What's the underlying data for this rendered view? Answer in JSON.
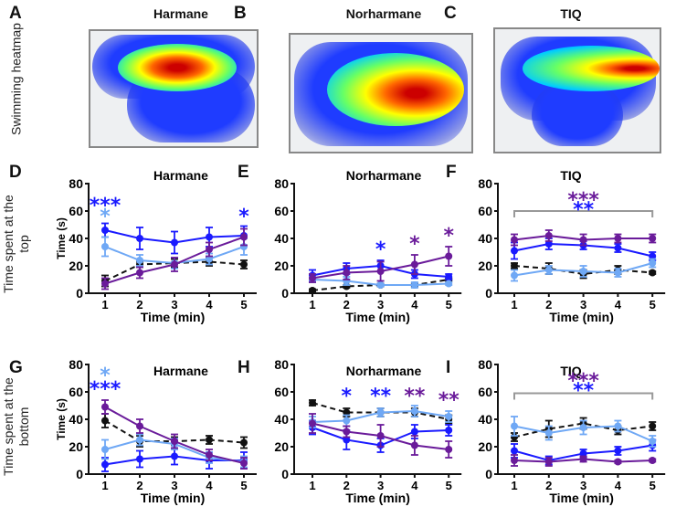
{
  "panel_letters": [
    "A",
    "B",
    "C",
    "D",
    "E",
    "F",
    "G",
    "H",
    "I"
  ],
  "row_labels": {
    "heatmap": "Swimming heatmap",
    "top": "Time spent at the top",
    "bottom": "Time spent at the bottom"
  },
  "compounds": [
    "Harmane",
    "Norharmane",
    "TIQ"
  ],
  "colors": {
    "control": "#111111",
    "blue": "#1a1aff",
    "lightblue": "#6fa8f5",
    "purple": "#6a1b9a"
  },
  "chart_data": [
    {
      "panel": "D",
      "type": "line",
      "title": "Harmane",
      "xlabel": "Time (min)",
      "ylabel": "Time (s)",
      "x": [
        1,
        2,
        3,
        4,
        5
      ],
      "ylim": [
        0,
        80
      ],
      "yticks": [
        0,
        20,
        40,
        60,
        80
      ],
      "series": [
        {
          "color": "control",
          "dashed": true,
          "values": [
            9,
            21,
            22,
            23,
            21
          ],
          "err": [
            4,
            2,
            3,
            3,
            3
          ]
        },
        {
          "color": "blue",
          "values": [
            46,
            40,
            37,
            41,
            42
          ],
          "err": [
            5,
            8,
            8,
            7,
            7
          ]
        },
        {
          "color": "lightblue",
          "values": [
            34,
            24,
            22,
            25,
            34
          ],
          "err": [
            7,
            4,
            4,
            4,
            6
          ]
        },
        {
          "color": "purple",
          "values": [
            7,
            15,
            21,
            32,
            41
          ],
          "err": [
            4,
            4,
            5,
            5,
            6
          ]
        }
      ],
      "annotations": [
        {
          "x": 1,
          "y": 66,
          "text": "***",
          "color": "blue"
        },
        {
          "x": 1,
          "y": 58,
          "text": "*",
          "color": "lightblue"
        },
        {
          "x": 5,
          "y": 58,
          "text": "*",
          "color": "blue"
        }
      ]
    },
    {
      "panel": "E",
      "type": "line",
      "title": "Norharmane",
      "xlabel": "Time (min)",
      "ylabel": "",
      "x": [
        1,
        2,
        3,
        4,
        5
      ],
      "ylim": [
        0,
        80
      ],
      "yticks": [
        0,
        20,
        40,
        60,
        80
      ],
      "series": [
        {
          "color": "control",
          "dashed": true,
          "values": [
            2,
            5,
            6,
            6,
            10
          ],
          "err": [
            1,
            1,
            1,
            1,
            1
          ]
        },
        {
          "color": "blue",
          "values": [
            13,
            18,
            20,
            14,
            12
          ],
          "err": [
            4,
            4,
            4,
            3,
            2
          ]
        },
        {
          "color": "lightblue",
          "values": [
            10,
            9,
            6,
            6,
            7
          ],
          "err": [
            2,
            3,
            1,
            2,
            1
          ]
        },
        {
          "color": "purple",
          "values": [
            11,
            15,
            16,
            21,
            27
          ],
          "err": [
            3,
            5,
            7,
            7,
            7
          ]
        }
      ],
      "annotations": [
        {
          "x": 3,
          "y": 34,
          "text": "*",
          "color": "blue"
        },
        {
          "x": 4,
          "y": 38,
          "text": "*",
          "color": "purple"
        },
        {
          "x": 5,
          "y": 44,
          "text": "*",
          "color": "purple"
        }
      ]
    },
    {
      "panel": "F",
      "type": "line",
      "title": "TIQ",
      "xlabel": "Time (min)",
      "ylabel": "",
      "x": [
        1,
        2,
        3,
        4,
        5
      ],
      "ylim": [
        0,
        80
      ],
      "yticks": [
        0,
        20,
        40,
        60,
        80
      ],
      "series": [
        {
          "color": "control",
          "dashed": true,
          "values": [
            20,
            18,
            14,
            17,
            15
          ],
          "err": [
            2,
            4,
            3,
            3,
            1
          ]
        },
        {
          "color": "blue",
          "values": [
            31,
            36,
            35,
            33,
            27
          ],
          "err": [
            6,
            4,
            3,
            3,
            3
          ]
        },
        {
          "color": "lightblue",
          "values": [
            13,
            17,
            16,
            15,
            22
          ],
          "err": [
            4,
            3,
            4,
            3,
            3
          ]
        },
        {
          "color": "purple",
          "values": [
            39,
            42,
            39,
            40,
            40
          ],
          "err": [
            4,
            4,
            4,
            3,
            3
          ]
        }
      ],
      "bracket": {
        "from": 1,
        "to": 5,
        "y": 60
      },
      "annotations": [
        {
          "x": 3,
          "y": 70,
          "text": "***",
          "color": "purple"
        },
        {
          "x": 3,
          "y": 63,
          "text": "**",
          "color": "blue"
        }
      ]
    },
    {
      "panel": "G",
      "type": "line",
      "title": "Harmane",
      "xlabel": "Time (min)",
      "ylabel": "Time (s)",
      "x": [
        1,
        2,
        3,
        4,
        5
      ],
      "ylim": [
        0,
        80
      ],
      "yticks": [
        0,
        20,
        40,
        60,
        80
      ],
      "series": [
        {
          "color": "control",
          "dashed": true,
          "values": [
            39,
            24,
            24,
            25,
            23
          ],
          "err": [
            5,
            4,
            3,
            3,
            4
          ]
        },
        {
          "color": "blue",
          "values": [
            7,
            11,
            13,
            10,
            10
          ],
          "err": [
            5,
            6,
            6,
            6,
            6
          ]
        },
        {
          "color": "lightblue",
          "values": [
            18,
            25,
            22,
            12,
            9
          ],
          "err": [
            7,
            4,
            4,
            4,
            4
          ]
        },
        {
          "color": "purple",
          "values": [
            49,
            35,
            24,
            14,
            8
          ],
          "err": [
            5,
            5,
            5,
            4,
            4
          ]
        }
      ],
      "annotations": [
        {
          "x": 1,
          "y": 74,
          "text": "*",
          "color": "lightblue"
        },
        {
          "x": 1,
          "y": 64,
          "text": "***",
          "color": "blue"
        }
      ]
    },
    {
      "panel": "H",
      "type": "line",
      "title": "Norharmane",
      "xlabel": "Time (min)",
      "ylabel": "",
      "x": [
        1,
        2,
        3,
        4,
        5
      ],
      "ylim": [
        0,
        80
      ],
      "yticks": [
        0,
        20,
        40,
        60,
        80
      ],
      "series": [
        {
          "color": "control",
          "dashed": true,
          "values": [
            52,
            45,
            45,
            45,
            40
          ],
          "err": [
            2,
            3,
            3,
            3,
            3
          ]
        },
        {
          "color": "blue",
          "values": [
            34,
            25,
            21,
            31,
            32
          ],
          "err": [
            5,
            7,
            5,
            5,
            4
          ]
        },
        {
          "color": "lightblue",
          "values": [
            38,
            39,
            45,
            46,
            42
          ],
          "err": [
            4,
            4,
            3,
            4,
            4
          ]
        },
        {
          "color": "purple",
          "values": [
            37,
            31,
            28,
            21,
            18
          ],
          "err": [
            7,
            4,
            8,
            7,
            6
          ]
        }
      ],
      "annotations": [
        {
          "x": 2,
          "y": 59,
          "text": "*",
          "color": "blue"
        },
        {
          "x": 3,
          "y": 59,
          "text": "**",
          "color": "blue"
        },
        {
          "x": 4,
          "y": 59,
          "text": "**",
          "color": "purple"
        },
        {
          "x": 5,
          "y": 56,
          "text": "**",
          "color": "purple"
        }
      ]
    },
    {
      "panel": "I",
      "type": "line",
      "title": "TIQ",
      "xlabel": "Time (min)",
      "ylabel": "",
      "x": [
        1,
        2,
        3,
        4,
        5
      ],
      "ylim": [
        0,
        80
      ],
      "yticks": [
        0,
        20,
        40,
        60,
        80
      ],
      "series": [
        {
          "color": "control",
          "dashed": true,
          "values": [
            27,
            33,
            37,
            32,
            35
          ],
          "err": [
            3,
            6,
            4,
            3,
            3
          ]
        },
        {
          "color": "blue",
          "values": [
            17,
            10,
            15,
            17,
            21
          ],
          "err": [
            5,
            3,
            3,
            3,
            4
          ]
        },
        {
          "color": "lightblue",
          "values": [
            35,
            30,
            34,
            35,
            24
          ],
          "err": [
            7,
            5,
            5,
            4,
            4
          ]
        },
        {
          "color": "purple",
          "values": [
            10,
            9,
            11,
            9,
            10
          ],
          "err": [
            4,
            3,
            2,
            1,
            1
          ]
        }
      ],
      "bracket": {
        "from": 1,
        "to": 5,
        "y": 59
      },
      "annotations": [
        {
          "x": 3,
          "y": 70,
          "text": "***",
          "color": "purple"
        },
        {
          "x": 3,
          "y": 63,
          "text": "**",
          "color": "blue"
        }
      ]
    }
  ]
}
